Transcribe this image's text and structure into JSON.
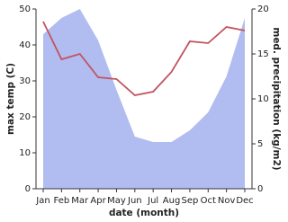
{
  "chart_data": {
    "type": "line",
    "x_label": "date (month)",
    "y_label": "max temp (C)",
    "y2_label": "med. precipitation (kg/m2)",
    "categories": [
      "Jan",
      "Feb",
      "Mar",
      "Apr",
      "May",
      "Jun",
      "Jul",
      "Aug",
      "Sep",
      "Oct",
      "Nov",
      "Dec"
    ],
    "series": [
      {
        "name": "med. precipitation (kg/m2)",
        "type": "area",
        "axis": "y2",
        "color": "#b1bcf0",
        "values": [
          17.2,
          19,
          20,
          16.5,
          11,
          5.8,
          5.2,
          5.2,
          6.5,
          8.5,
          12.5,
          19
        ]
      },
      {
        "name": "max temp (C)",
        "type": "line",
        "axis": "y",
        "color": "#c1545f",
        "values": [
          46.5,
          36,
          37.5,
          31,
          30.5,
          26,
          27,
          32.5,
          41,
          40.5,
          45,
          44
        ]
      }
    ],
    "ylim": [
      0,
      50
    ],
    "yticks": [
      0,
      10,
      20,
      30,
      40,
      50
    ],
    "y2lim": [
      0,
      20
    ],
    "y2ticks": [
      0,
      5,
      10,
      15,
      20
    ]
  }
}
